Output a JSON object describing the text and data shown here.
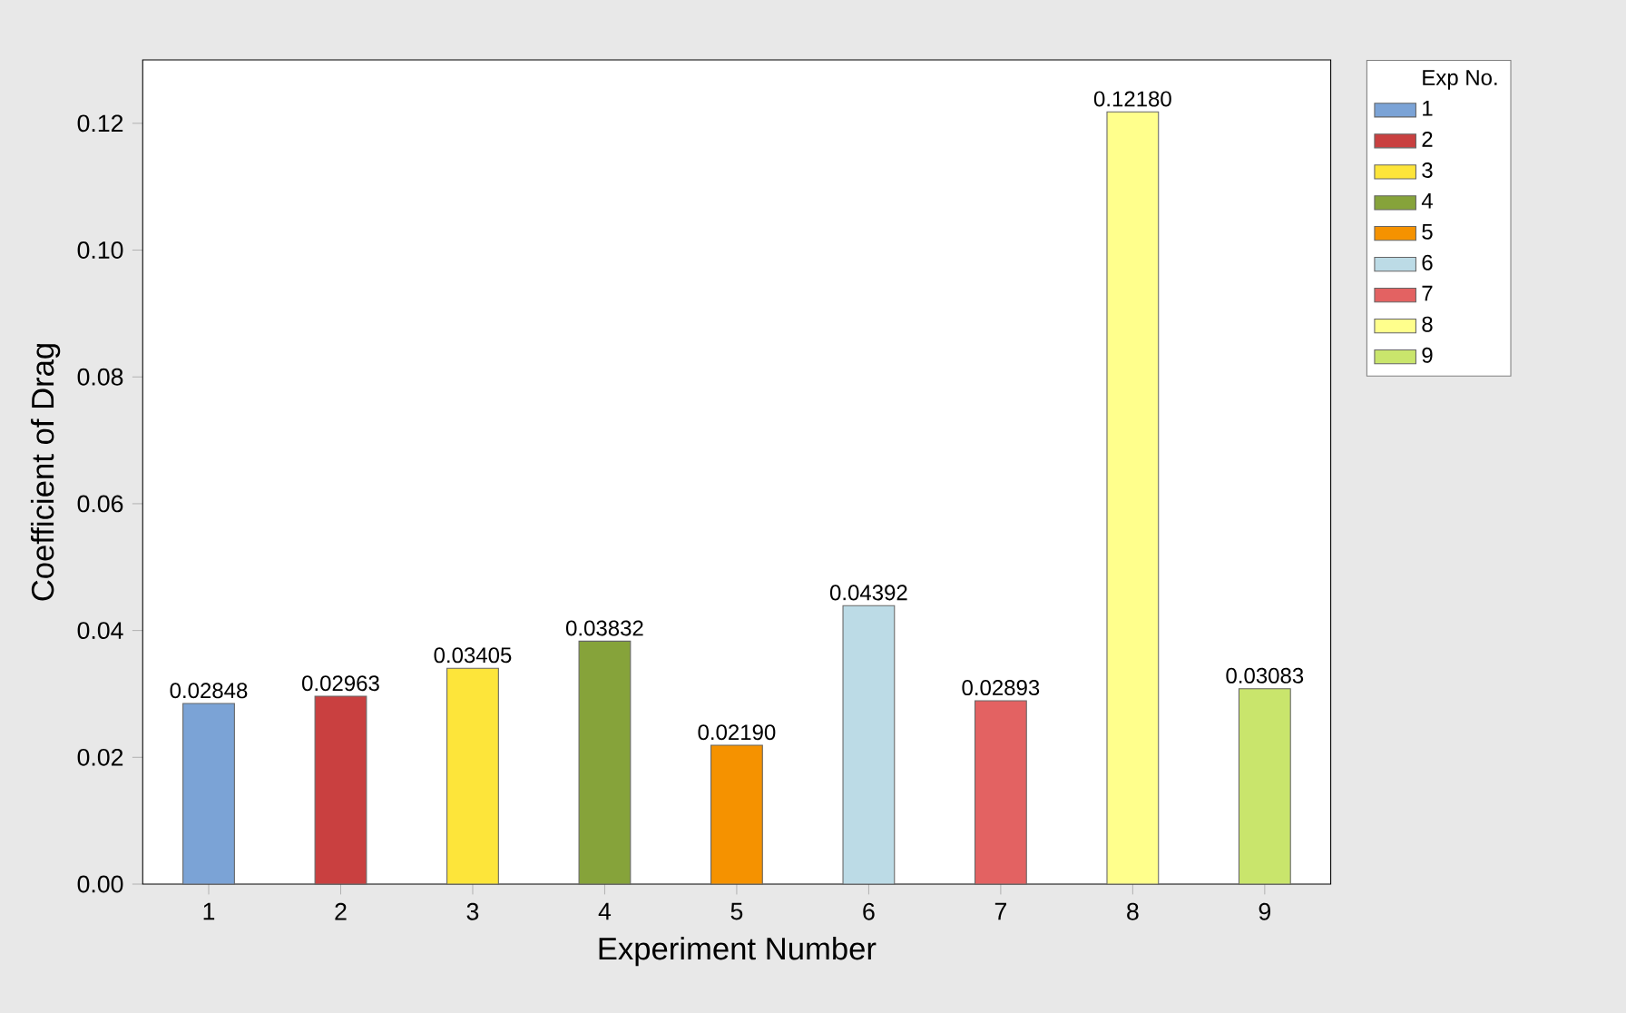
{
  "chart_data": {
    "type": "bar",
    "xlabel": "Experiment Number",
    "ylabel": "Coefficient of Drag",
    "legend_title": "Exp No.",
    "categories": [
      "1",
      "2",
      "3",
      "4",
      "5",
      "6",
      "7",
      "8",
      "9"
    ],
    "series": [
      {
        "name": "1",
        "color": "#7ba3d6",
        "values": [
          0.02848,
          null,
          null,
          null,
          null,
          null,
          null,
          null,
          null
        ],
        "value_labels": [
          "0.02848",
          null,
          null,
          null,
          null,
          null,
          null,
          null,
          null
        ]
      },
      {
        "name": "2",
        "color": "#c94040",
        "values": [
          null,
          0.02963,
          null,
          null,
          null,
          null,
          null,
          null,
          null
        ],
        "value_labels": [
          null,
          "0.02963",
          null,
          null,
          null,
          null,
          null,
          null,
          null
        ]
      },
      {
        "name": "3",
        "color": "#fde53a",
        "values": [
          null,
          null,
          0.03405,
          null,
          null,
          null,
          null,
          null,
          null
        ],
        "value_labels": [
          null,
          null,
          "0.03405",
          null,
          null,
          null,
          null,
          null,
          null
        ]
      },
      {
        "name": "4",
        "color": "#86a33a",
        "values": [
          null,
          null,
          null,
          0.03832,
          null,
          null,
          null,
          null,
          null
        ],
        "value_labels": [
          null,
          null,
          null,
          "0.03832",
          null,
          null,
          null,
          null,
          null
        ]
      },
      {
        "name": "5",
        "color": "#f59200",
        "values": [
          null,
          null,
          null,
          null,
          0.0219,
          null,
          null,
          null,
          null
        ],
        "value_labels": [
          null,
          null,
          null,
          null,
          "0.02190",
          null,
          null,
          null,
          null
        ]
      },
      {
        "name": "6",
        "color": "#bcdbe6",
        "values": [
          null,
          null,
          null,
          null,
          null,
          0.04392,
          null,
          null,
          null
        ],
        "value_labels": [
          null,
          null,
          null,
          null,
          null,
          "0.04392",
          null,
          null,
          null
        ]
      },
      {
        "name": "7",
        "color": "#e36262",
        "values": [
          null,
          null,
          null,
          null,
          null,
          null,
          0.02893,
          null,
          null
        ],
        "value_labels": [
          null,
          null,
          null,
          null,
          null,
          null,
          "0.02893",
          null,
          null
        ]
      },
      {
        "name": "8",
        "color": "#ffff8c",
        "values": [
          null,
          null,
          null,
          null,
          null,
          null,
          null,
          0.1218,
          null
        ],
        "value_labels": [
          null,
          null,
          null,
          null,
          null,
          null,
          null,
          "0.12180",
          null
        ]
      },
      {
        "name": "9",
        "color": "#c9e56c",
        "values": [
          null,
          null,
          null,
          null,
          null,
          null,
          null,
          null,
          0.03083
        ],
        "value_labels": [
          null,
          null,
          null,
          null,
          null,
          null,
          null,
          null,
          "0.03083"
        ]
      }
    ],
    "ylim": [
      0,
      0.13
    ],
    "yticks": [
      {
        "value": 0,
        "label": "0.00"
      },
      0.02,
      0.04,
      0.06,
      0.08,
      {
        "value": 0.1,
        "label": "0.10"
      },
      0.12
    ],
    "legend": "right"
  }
}
